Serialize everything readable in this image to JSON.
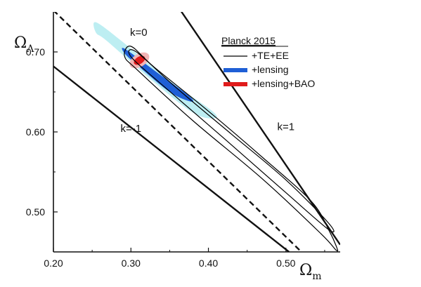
{
  "chart_data": {
    "type": "line",
    "title": "",
    "xlabel": {
      "symbol": "Ω",
      "sub": "m"
    },
    "ylabel": {
      "symbol": "Ω",
      "sub": "Λ"
    },
    "xlim": [
      0.2,
      0.57
    ],
    "ylim": [
      0.45,
      0.75
    ],
    "xticks": [
      0.2,
      0.3,
      0.4,
      0.5
    ],
    "xtick_labels": [
      "0.20",
      "0.30",
      "0.40",
      "0.50"
    ],
    "yticks": [
      0.5,
      0.6,
      0.7
    ],
    "ytick_labels": [
      "0.50",
      "0.60",
      "0.70"
    ],
    "grid": false,
    "legend": {
      "title": "Planck 2015",
      "placement": "top-right",
      "entries": [
        {
          "label": "+TE+EE",
          "color": "#000000",
          "style": "thin-line"
        },
        {
          "label": "+lensing",
          "color": "#1f5fd6",
          "style": "thick-line"
        },
        {
          "label": "+lensing+BAO",
          "color": "#e01b1b",
          "style": "thick-line"
        }
      ]
    },
    "reference_lines": [
      {
        "label": "k=0",
        "style": "dashed",
        "points": [
          [
            0.2,
            0.752
          ],
          [
            0.52,
            0.45
          ]
        ]
      },
      {
        "label": "k=-1",
        "style": "solid",
        "points": [
          [
            0.2,
            0.682
          ],
          [
            0.504,
            0.45
          ]
        ]
      },
      {
        "label": "k=1",
        "style": "solid",
        "points": [
          [
            0.364,
            0.752
          ],
          [
            0.57,
            0.459
          ]
        ]
      }
    ],
    "contours": {
      "te_ee_outer": [
        [
          0.3,
          0.707
        ],
        [
          0.33,
          0.681
        ],
        [
          0.4,
          0.626
        ],
        [
          0.47,
          0.568
        ],
        [
          0.533,
          0.513
        ],
        [
          0.556,
          0.476
        ],
        [
          0.565,
          0.457
        ],
        [
          0.565,
          0.452
        ],
        [
          0.545,
          0.473
        ],
        [
          0.47,
          0.541
        ],
        [
          0.38,
          0.614
        ],
        [
          0.31,
          0.676
        ],
        [
          0.292,
          0.694
        ]
      ],
      "te_ee_inner": [
        [
          0.307,
          0.7
        ],
        [
          0.36,
          0.654
        ],
        [
          0.43,
          0.597
        ],
        [
          0.5,
          0.54
        ],
        [
          0.555,
          0.486
        ],
        [
          0.555,
          0.478
        ],
        [
          0.5,
          0.524
        ],
        [
          0.42,
          0.592
        ],
        [
          0.34,
          0.659
        ],
        [
          0.3,
          0.694
        ]
      ],
      "lensing_outer": [
        [
          0.255,
          0.737
        ],
        [
          0.29,
          0.712
        ],
        [
          0.35,
          0.664
        ],
        [
          0.405,
          0.626
        ],
        [
          0.407,
          0.617
        ],
        [
          0.38,
          0.624
        ],
        [
          0.33,
          0.662
        ],
        [
          0.27,
          0.713
        ],
        [
          0.255,
          0.724
        ]
      ],
      "lensing_inner": [
        [
          0.292,
          0.704
        ],
        [
          0.33,
          0.677
        ],
        [
          0.375,
          0.645
        ],
        [
          0.377,
          0.638
        ],
        [
          0.35,
          0.65
        ],
        [
          0.31,
          0.682
        ],
        [
          0.292,
          0.698
        ]
      ],
      "bao_outer": {
        "cx": 0.311,
        "cy": 0.6895,
        "rx": 0.014,
        "ry": 0.008,
        "angle": -32
      },
      "bao_inner": {
        "cx": 0.311,
        "cy": 0.6895,
        "rx": 0.008,
        "ry": 0.0045,
        "angle": -32
      }
    },
    "colors": {
      "te_ee": "#000000",
      "lensing_outer": "#bdeef2",
      "lensing_inner": "#1f5fd6",
      "bao_outer": "#f2b4b4",
      "bao_inner": "#e01b1b"
    }
  }
}
